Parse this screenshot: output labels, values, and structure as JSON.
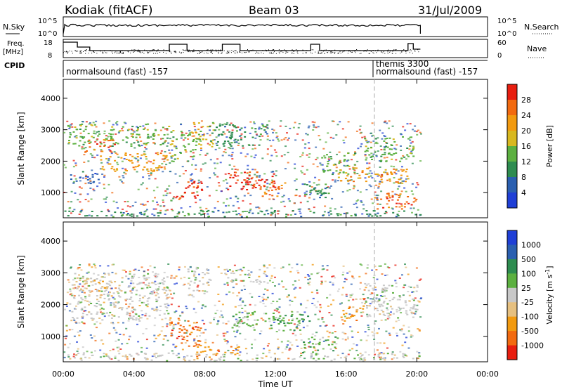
{
  "header": {
    "station": "Kodiak (fitACF)",
    "beam": "Beam 03",
    "date": "31/Jul/2009"
  },
  "strip_labels": {
    "nsky": "N.Sky",
    "nsearch": "N.Search",
    "freq": "Freq.",
    "freq_unit": "[MHz]",
    "nave": "Nave",
    "cpid": "CPID"
  },
  "strip_ticks": {
    "nsky_left": [
      "10^5",
      "10^0"
    ],
    "nsky_right": [
      "10^5",
      "10^0"
    ],
    "freq_left": [
      "18",
      "8"
    ],
    "nave_right": [
      "60",
      "0"
    ]
  },
  "cpid_labels": {
    "mode1": "normalsound (fast) -157",
    "mode2_line1": "themis 3300",
    "mode2_line2": "normalsound (fast) -157"
  },
  "colors": {
    "power": [
      "#1f3fd6",
      "#2a5fb0",
      "#2e8c50",
      "#5cb040",
      "#d8b820",
      "#f29a10",
      "#f26a10",
      "#e81e10"
    ],
    "velocity": [
      "#e81e10",
      "#f26a10",
      "#f29a10",
      "#e6c080",
      "#c8c8c8",
      "#5cb040",
      "#2e8c50",
      "#2a5fb0",
      "#1f3fd6"
    ]
  },
  "chart_data": [
    {
      "type": "heatmap",
      "name": "power",
      "ylabel": "Slant Range [km]",
      "xlabel": "Time UT",
      "xticks": [
        "00:00",
        "04:00",
        "08:00",
        "12:00",
        "16:00",
        "20:00",
        "00:00"
      ],
      "yticks": [
        "1000",
        "2000",
        "3000",
        "4000"
      ],
      "ylim": [
        200,
        4600
      ],
      "xlim_hours": [
        0,
        24
      ],
      "colorbar_label": "Power [dB]",
      "colorbar_ticks": [
        "4",
        "8",
        "12",
        "16",
        "20",
        "24",
        "28"
      ],
      "blobs": [
        {
          "t0": 0.2,
          "t1": 6.0,
          "r0": 2500,
          "r1": 3200,
          "level": 3
        },
        {
          "t0": 1.0,
          "t1": 3.0,
          "r0": 2300,
          "r1": 2700,
          "level": 6
        },
        {
          "t0": 2.0,
          "t1": 6.0,
          "r0": 1700,
          "r1": 2300,
          "level": 5
        },
        {
          "t0": 0.3,
          "t1": 2.0,
          "r0": 1300,
          "r1": 1700,
          "level": 1
        },
        {
          "t0": 6.0,
          "t1": 7.5,
          "r0": 2000,
          "r1": 3000,
          "level": 3
        },
        {
          "t0": 6.3,
          "t1": 7.8,
          "r0": 800,
          "r1": 1400,
          "level": 7
        },
        {
          "t0": 7.2,
          "t1": 8.5,
          "r0": 2400,
          "r1": 3300,
          "level": 4
        },
        {
          "t0": 8.2,
          "t1": 11.5,
          "r0": 2500,
          "r1": 3200,
          "level": 2
        },
        {
          "t0": 9.2,
          "t1": 12.0,
          "r0": 1100,
          "r1": 1700,
          "level": 7
        },
        {
          "t0": 11.0,
          "t1": 12.5,
          "r0": 900,
          "r1": 1400,
          "level": 6
        },
        {
          "t0": 13.0,
          "t1": 15.0,
          "r0": 800,
          "r1": 1300,
          "level": 2
        },
        {
          "t0": 14.5,
          "t1": 16.5,
          "r0": 1600,
          "r1": 2300,
          "level": 3
        },
        {
          "t0": 15.5,
          "t1": 19.5,
          "r0": 1300,
          "r1": 1800,
          "level": 5
        },
        {
          "t0": 17.0,
          "t1": 19.8,
          "r0": 2000,
          "r1": 2800,
          "level": 3
        },
        {
          "t0": 17.5,
          "t1": 20.0,
          "r0": 500,
          "r1": 1000,
          "level": 6
        },
        {
          "t0": 0.0,
          "t1": 20.2,
          "r0": 250,
          "r1": 450,
          "level": 2
        }
      ]
    },
    {
      "type": "heatmap",
      "name": "velocity",
      "ylabel": "Slant Range [km]",
      "xlabel": "Time UT",
      "xticks": [
        "00:00",
        "04:00",
        "08:00",
        "12:00",
        "16:00",
        "20:00",
        "00:00"
      ],
      "yticks": [
        "1000",
        "2000",
        "3000",
        "4000"
      ],
      "ylim": [
        200,
        4600
      ],
      "xlim_hours": [
        0,
        24
      ],
      "colorbar_label": "Velocity [m s^-1]",
      "colorbar_ticks": [
        "1000",
        "500",
        "100",
        "25",
        "-25",
        "-100",
        "-500",
        "-1000"
      ],
      "blobs": [
        {
          "t0": 0.3,
          "t1": 6.0,
          "r0": 1500,
          "r1": 3000,
          "level": 4
        },
        {
          "t0": 0.5,
          "t1": 2.5,
          "r0": 2400,
          "r1": 2900,
          "level": 3
        },
        {
          "t0": 6.0,
          "t1": 7.8,
          "r0": 700,
          "r1": 1600,
          "level": 1
        },
        {
          "t0": 7.0,
          "t1": 8.3,
          "r0": 2300,
          "r1": 3200,
          "level": 4
        },
        {
          "t0": 7.5,
          "t1": 10.0,
          "r0": 300,
          "r1": 700,
          "level": 2
        },
        {
          "t0": 9.0,
          "t1": 11.5,
          "r0": 2700,
          "r1": 3200,
          "level": 4
        },
        {
          "t0": 9.5,
          "t1": 13.5,
          "r0": 1200,
          "r1": 1800,
          "level": 5
        },
        {
          "t0": 12.0,
          "t1": 14.0,
          "r0": 1400,
          "r1": 1700,
          "level": 6
        },
        {
          "t0": 13.5,
          "t1": 15.5,
          "r0": 500,
          "r1": 1000,
          "level": 5
        },
        {
          "t0": 15.5,
          "t1": 17.0,
          "r0": 1500,
          "r1": 2000,
          "level": 2
        },
        {
          "t0": 17.0,
          "t1": 20.0,
          "r0": 1600,
          "r1": 2700,
          "level": 4
        },
        {
          "t0": 0.0,
          "t1": 20.2,
          "r0": 250,
          "r1": 500,
          "level": 4
        }
      ]
    }
  ]
}
